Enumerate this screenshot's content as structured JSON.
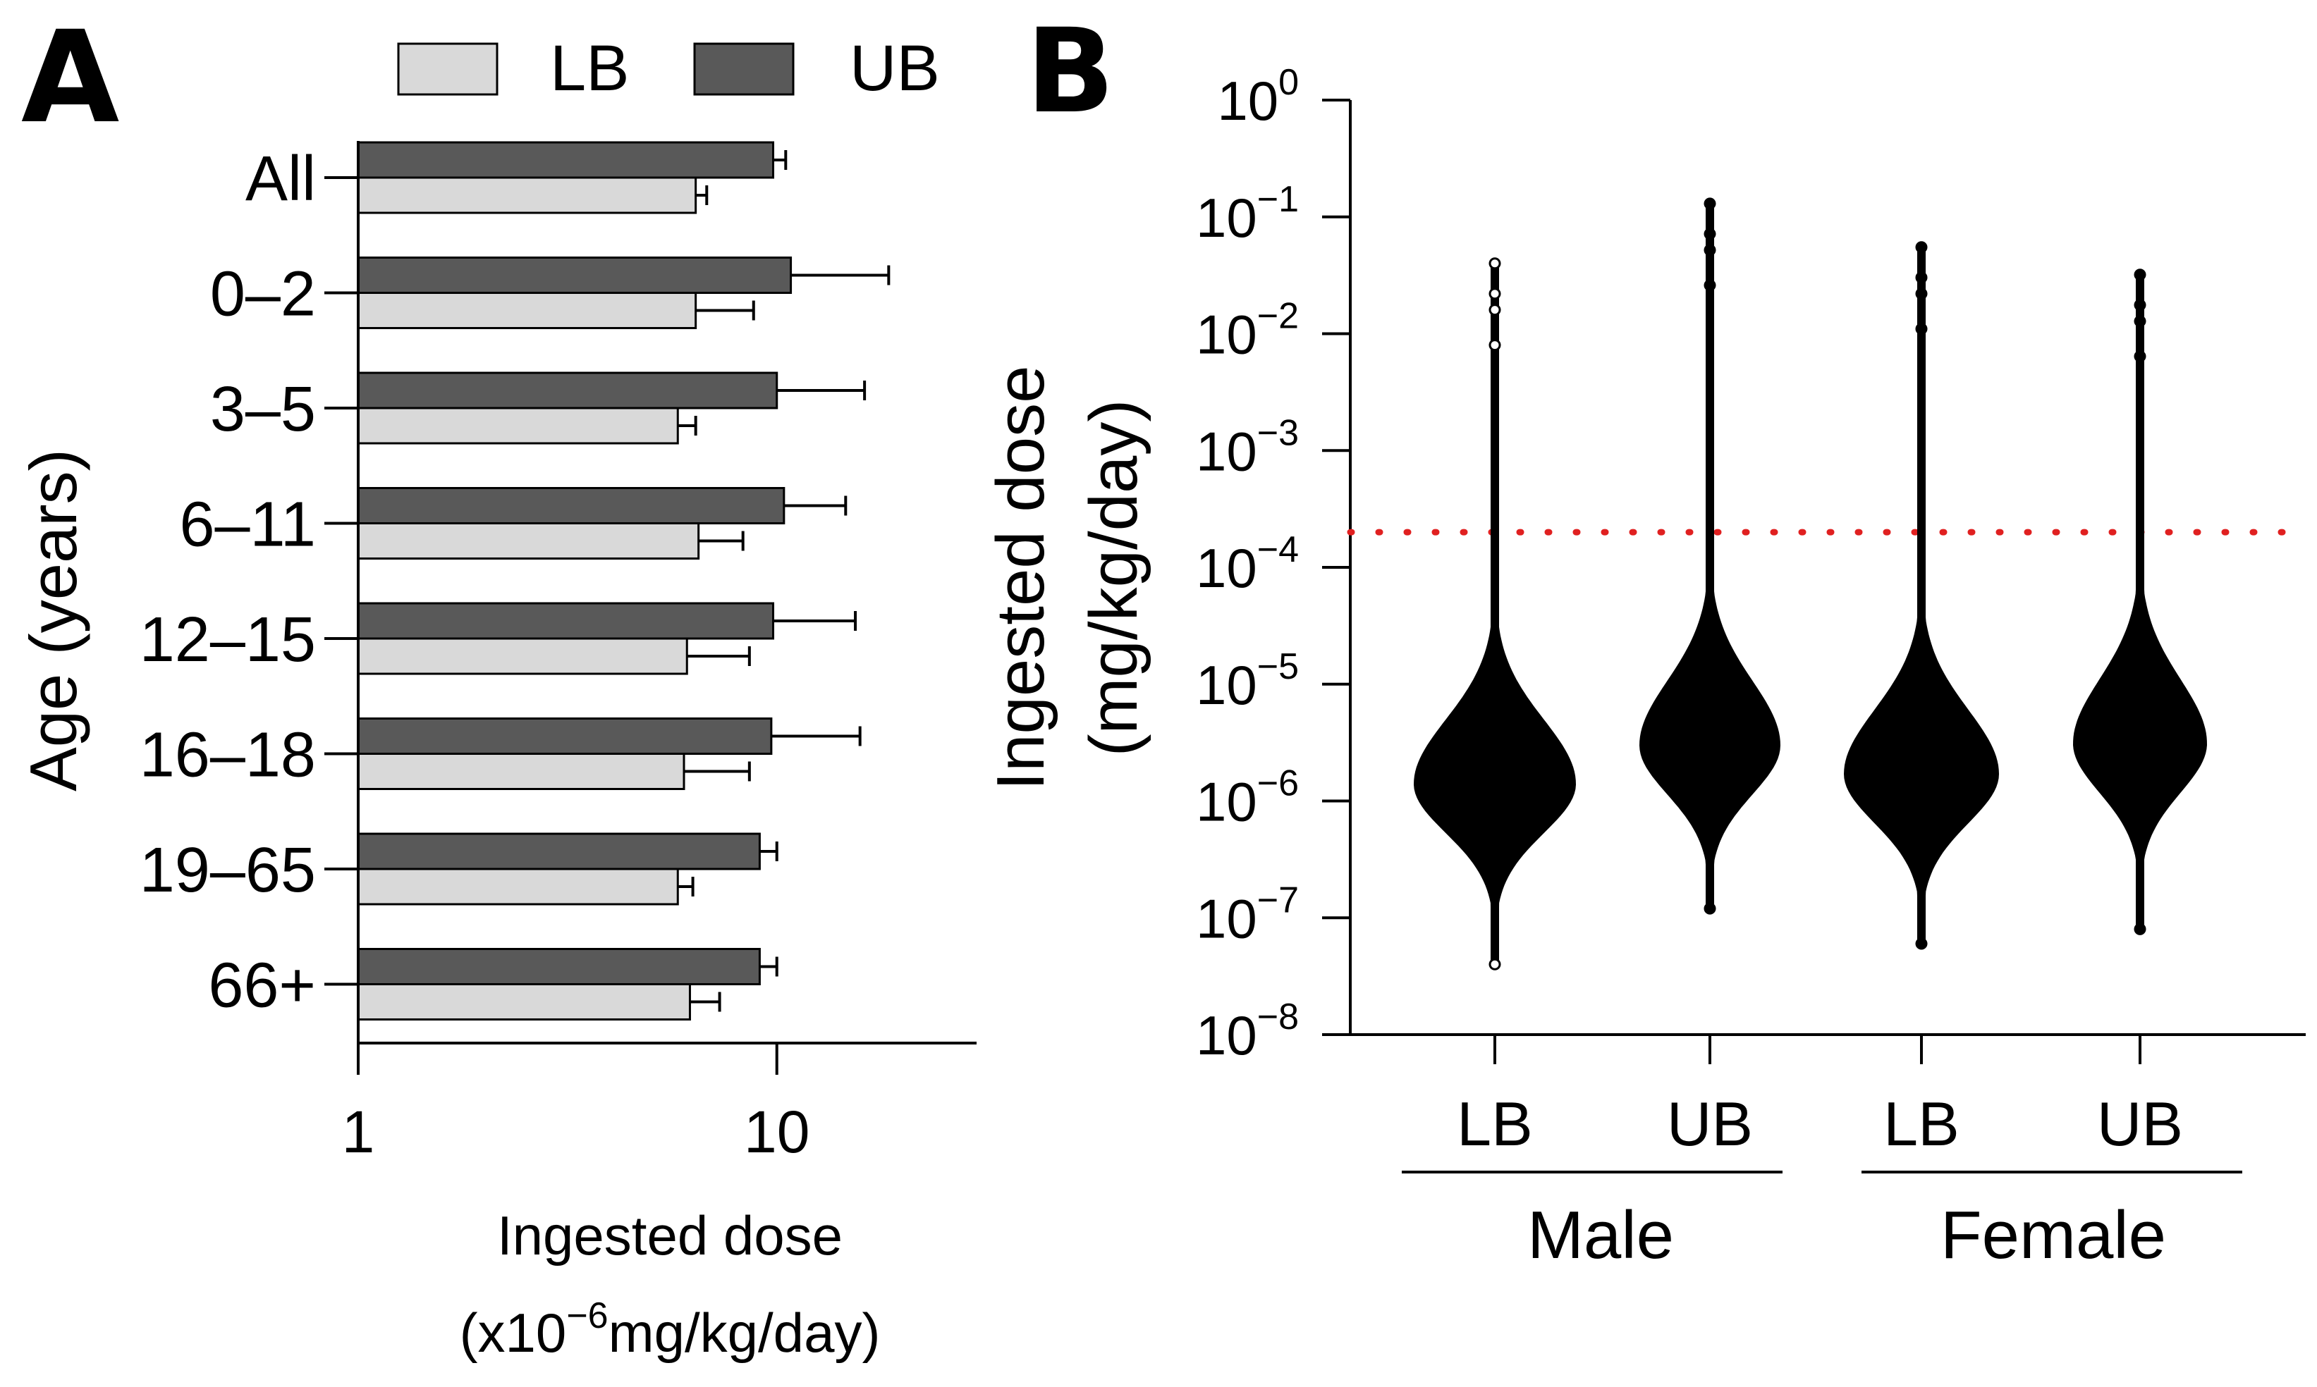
{
  "colors": {
    "lb_fill": "#d9d9d9",
    "ub_fill": "#595959",
    "axis": "#000000",
    "reference_line": "#e02020"
  },
  "chart_data": [
    {
      "panel": "A",
      "type": "bar",
      "orientation": "horizontal",
      "x_scale": "log",
      "xlim": [
        1,
        30
      ],
      "xticks": [
        "1",
        "10"
      ],
      "xlabel_line1": "Ingested dose",
      "xlabel_line2_prefix": "(x10",
      "xlabel_line2_exp": "−6",
      "xlabel_line2_suffix": "mg/kg/day)",
      "ylabel": "Age (years)",
      "legend": [
        "LB",
        "UB"
      ],
      "legend_position": "top",
      "categories": [
        "All",
        "0–2",
        "3–5",
        "6–11",
        "12–15",
        "16–18",
        "19–65",
        "66+"
      ],
      "series": [
        {
          "name": "LB",
          "values": [
            6.4,
            6.4,
            5.8,
            6.5,
            6.1,
            6.0,
            5.8,
            6.2
          ],
          "err_upper": [
            6.8,
            8.8,
            6.4,
            8.3,
            8.6,
            8.6,
            6.3,
            7.3
          ]
        },
        {
          "name": "UB",
          "values": [
            9.8,
            10.8,
            10.0,
            10.4,
            9.8,
            9.7,
            9.1,
            9.1
          ],
          "err_upper": [
            10.5,
            18.5,
            16.2,
            14.6,
            15.4,
            15.8,
            10.0,
            10.0
          ]
        }
      ]
    },
    {
      "panel": "B",
      "type": "violin-dot",
      "y_scale": "log",
      "ylim": [
        1e-08,
        1
      ],
      "ylabel_line1": "Ingested dose",
      "ylabel_line2": "(mg/kg/day)",
      "yticks": [
        {
          "base": "10",
          "exp": "0"
        },
        {
          "base": "10",
          "exp": "−1"
        },
        {
          "base": "10",
          "exp": "−2"
        },
        {
          "base": "10",
          "exp": "−3"
        },
        {
          "base": "10",
          "exp": "−4"
        },
        {
          "base": "10",
          "exp": "−5"
        },
        {
          "base": "10",
          "exp": "−6"
        },
        {
          "base": "10",
          "exp": "−7"
        },
        {
          "base": "10",
          "exp": "−8"
        }
      ],
      "reference_line": 0.0002,
      "groups": [
        {
          "label": "LB",
          "sex": "Male",
          "median": 1.4e-06,
          "min": 4e-08,
          "max": 0.04
        },
        {
          "label": "UB",
          "sex": "Male",
          "median": 3e-06,
          "min": 1.2e-07,
          "max": 0.13
        },
        {
          "label": "LB",
          "sex": "Female",
          "median": 1.7e-06,
          "min": 6e-08,
          "max": 0.055
        },
        {
          "label": "UB",
          "sex": "Female",
          "median": 3.1e-06,
          "min": 8e-08,
          "max": 0.032
        }
      ],
      "group_labels": [
        "Male",
        "Female"
      ]
    }
  ]
}
